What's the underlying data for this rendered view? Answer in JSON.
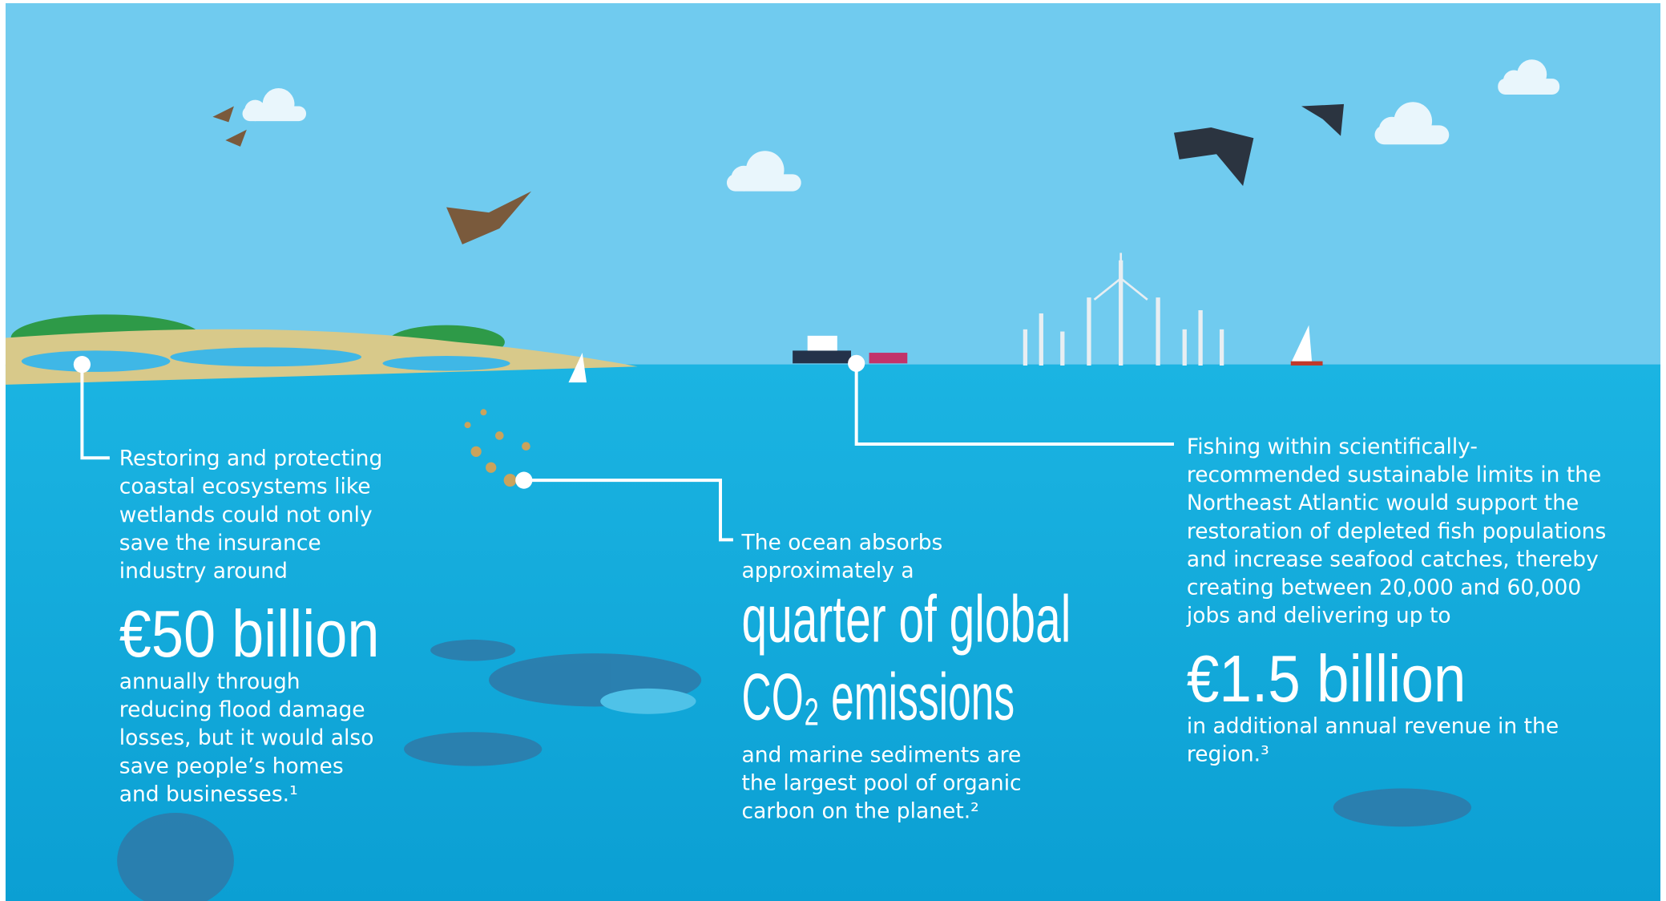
{
  "blocks": [
    {
      "intro": [
        "Restoring and protecting",
        "coastal ecosystems like",
        "wetlands could not only",
        "save the insurance",
        "industry around"
      ],
      "figure": [
        "€50 billion"
      ],
      "outro": [
        "annually through",
        "reducing flood damage",
        "losses, but it would also",
        "save people’s homes",
        "and businesses.¹"
      ]
    },
    {
      "intro": [
        "The ocean absorbs",
        "approximately a"
      ],
      "figure": [
        "quarter of global",
        "CO₂ emissions"
      ],
      "outro": [
        "and marine sediments are",
        "the largest pool of organic",
        "carbon on the planet.²"
      ]
    },
    {
      "intro": [
        "Fishing within scientifically-",
        "recommended sustainable limits in the",
        "Northeast Atlantic would support the",
        "restoration of depleted fish populations",
        "and increase seafood catches, thereby",
        "creating between 20,000 and 60,000",
        "jobs and delivering up to"
      ],
      "figure": [
        "€1.5 billion"
      ],
      "outro": [
        "in additional annual revenue in the",
        "region.³"
      ]
    }
  ]
}
